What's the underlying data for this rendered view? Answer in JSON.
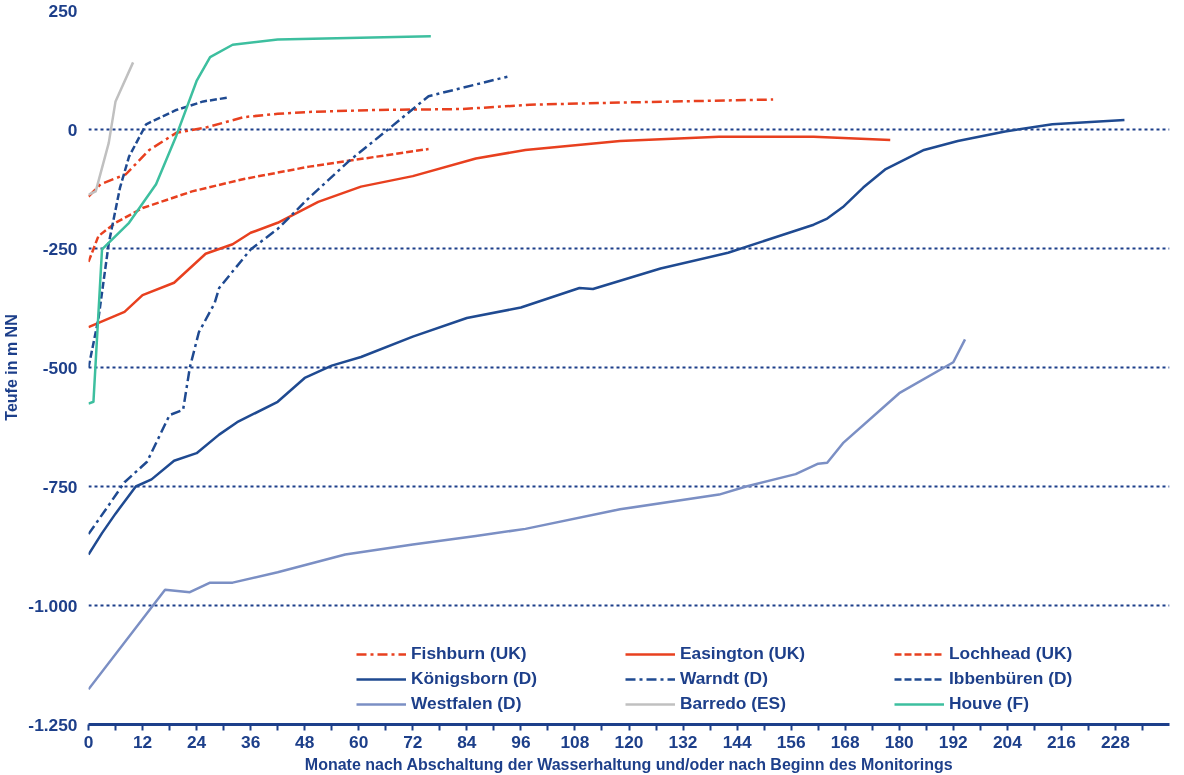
{
  "chart_data": {
    "type": "line",
    "xlabel": "Monate nach Abschaltung der Wasserhaltung und/oder nach Beginn des Monitorings",
    "ylabel": "Teufe in m NN",
    "xlim": [
      0,
      240
    ],
    "xticks": [
      0,
      {
        "value": 6,
        "label": null
      },
      12,
      {
        "value": 18,
        "label": null
      },
      24,
      {
        "value": 30,
        "label": null
      },
      36,
      {
        "value": 42,
        "label": null
      },
      48,
      {
        "value": 54,
        "label": null
      },
      60,
      {
        "value": 66,
        "label": null
      },
      72,
      {
        "value": 78,
        "label": null
      },
      84,
      {
        "value": 90,
        "label": null
      },
      96,
      {
        "value": 102,
        "label": null
      },
      108,
      {
        "value": 114,
        "label": null
      },
      120,
      {
        "value": 126,
        "label": null
      },
      132,
      {
        "value": 138,
        "label": null
      },
      144,
      {
        "value": 150,
        "label": null
      },
      156,
      {
        "value": 162,
        "label": null
      },
      168,
      {
        "value": 174,
        "label": null
      },
      180,
      {
        "value": 186,
        "label": null
      },
      192,
      {
        "value": 198,
        "label": null
      },
      204,
      {
        "value": 210,
        "label": null
      },
      216,
      {
        "value": 222,
        "label": null
      },
      228,
      {
        "value": 234,
        "label": null
      }
    ],
    "ylim": [
      -1250,
      250
    ],
    "yticks": [
      {
        "value": -1250,
        "label": "-1.250"
      },
      {
        "value": -1000,
        "label": "-1.000"
      },
      -750,
      -500,
      -250,
      0,
      250
    ],
    "grid": "y",
    "legend": "bottom right",
    "series": [
      {
        "name": "Fishburn (UK)",
        "color": "#e8401f",
        "line_style": "dashdot",
        "x": [
          0,
          2.7,
          8.3,
          13.5,
          19.5,
          26,
          34.5,
          42,
          49,
          64,
          83,
          98,
          120,
          152
        ],
        "values": [
          -141,
          -115,
          -94,
          -43,
          -7,
          4,
          26,
          33,
          37,
          41,
          43,
          52,
          57,
          63
        ]
      },
      {
        "name": "Easington (UK)",
        "color": "#e8401f",
        "line_style": "solid",
        "x": [
          0,
          8,
          12,
          19,
          26,
          32,
          36,
          42,
          51,
          60.5,
          72,
          86,
          97,
          118,
          140,
          161,
          178
        ],
        "values": [
          -415,
          -383,
          -348,
          -322,
          -261,
          -241,
          -217,
          -196,
          -152,
          -120,
          -98,
          -61,
          -43,
          -24,
          -15,
          -15,
          -22
        ]
      },
      {
        "name": "Lochhead (UK)",
        "color": "#e8401f",
        "line_style": "dashed",
        "x": [
          0,
          2.2,
          6,
          12,
          23,
          34.5,
          49,
          64,
          75.5
        ],
        "values": [
          -278,
          -224,
          -196,
          -165,
          -130,
          -104,
          -78,
          -57,
          -41
        ]
      },
      {
        "name": "Königsborn (D)",
        "color": "#1f4a91",
        "line_style": "solid",
        "x": [
          0,
          3,
          6,
          10.5,
          14,
          19,
          24,
          29,
          33,
          42,
          48,
          54,
          60.5,
          72,
          84,
          96,
          109,
          112,
          127,
          142,
          161,
          164,
          167.5,
          172,
          177,
          185.5,
          193,
          203.5,
          214,
          230
        ],
        "values": [
          -893,
          -848,
          -807,
          -750,
          -735,
          -696,
          -680,
          -641,
          -615,
          -572,
          -522,
          -496,
          -478,
          -435,
          -396,
          -374,
          -333,
          -335,
          -292,
          -259,
          -200,
          -187,
          -163,
          -122,
          -83,
          -43,
          -24,
          -4,
          11,
          20
        ]
      },
      {
        "name": "Warndt (D)",
        "color": "#1f4a91",
        "line_style": "dashdot",
        "x": [
          0,
          4,
          8,
          13,
          18,
          21,
          22.5,
          24.5,
          28,
          29,
          36,
          42,
          49,
          58,
          66.5,
          75.5,
          93
        ],
        "values": [
          -850,
          -796,
          -741,
          -698,
          -600,
          -589,
          -500,
          -426,
          -365,
          -333,
          -252,
          -209,
          -143,
          -65,
          0,
          70,
          111
        ]
      },
      {
        "name": "Ibbenbüren (D)",
        "color": "#1f4a91",
        "line_style": "dashed",
        "x": [
          0,
          2.2,
          4.5,
          7,
          9,
          12.8,
          19.5,
          25.5,
          31
        ],
        "values": [
          -500,
          -398,
          -239,
          -122,
          -57,
          11,
          41,
          59,
          67
        ]
      },
      {
        "name": "Westfalen (D)",
        "color": "#7b8fc4",
        "line_style": "solid",
        "x": [
          0,
          17,
          22.5,
          27,
          32,
          42,
          57,
          72,
          86,
          97,
          118,
          140,
          146,
          157,
          162,
          164,
          167.5,
          180,
          192,
          194.6
        ],
        "values": [
          -1176,
          -967,
          -972,
          -952,
          -952,
          -930,
          -893,
          -872,
          -854,
          -839,
          -798,
          -767,
          -750,
          -724,
          -702,
          -700,
          -659,
          -554,
          -489,
          -441
        ]
      },
      {
        "name": "Barredo (ES)",
        "color": "#c0c0c0",
        "line_style": "solid",
        "x": [
          0,
          1.6,
          4.5,
          6,
          9.9
        ],
        "values": [
          -137,
          -130,
          -28,
          59,
          141
        ]
      },
      {
        "name": "Houve (F)",
        "color": "#3dbf9f",
        "line_style": "solid",
        "x": [
          0,
          1.1,
          3,
          9,
          15,
          19.5,
          24,
          27,
          32,
          42,
          76
        ],
        "values": [
          -576,
          -572,
          -252,
          -196,
          -115,
          -13,
          102,
          152,
          178,
          189,
          196
        ]
      }
    ]
  }
}
